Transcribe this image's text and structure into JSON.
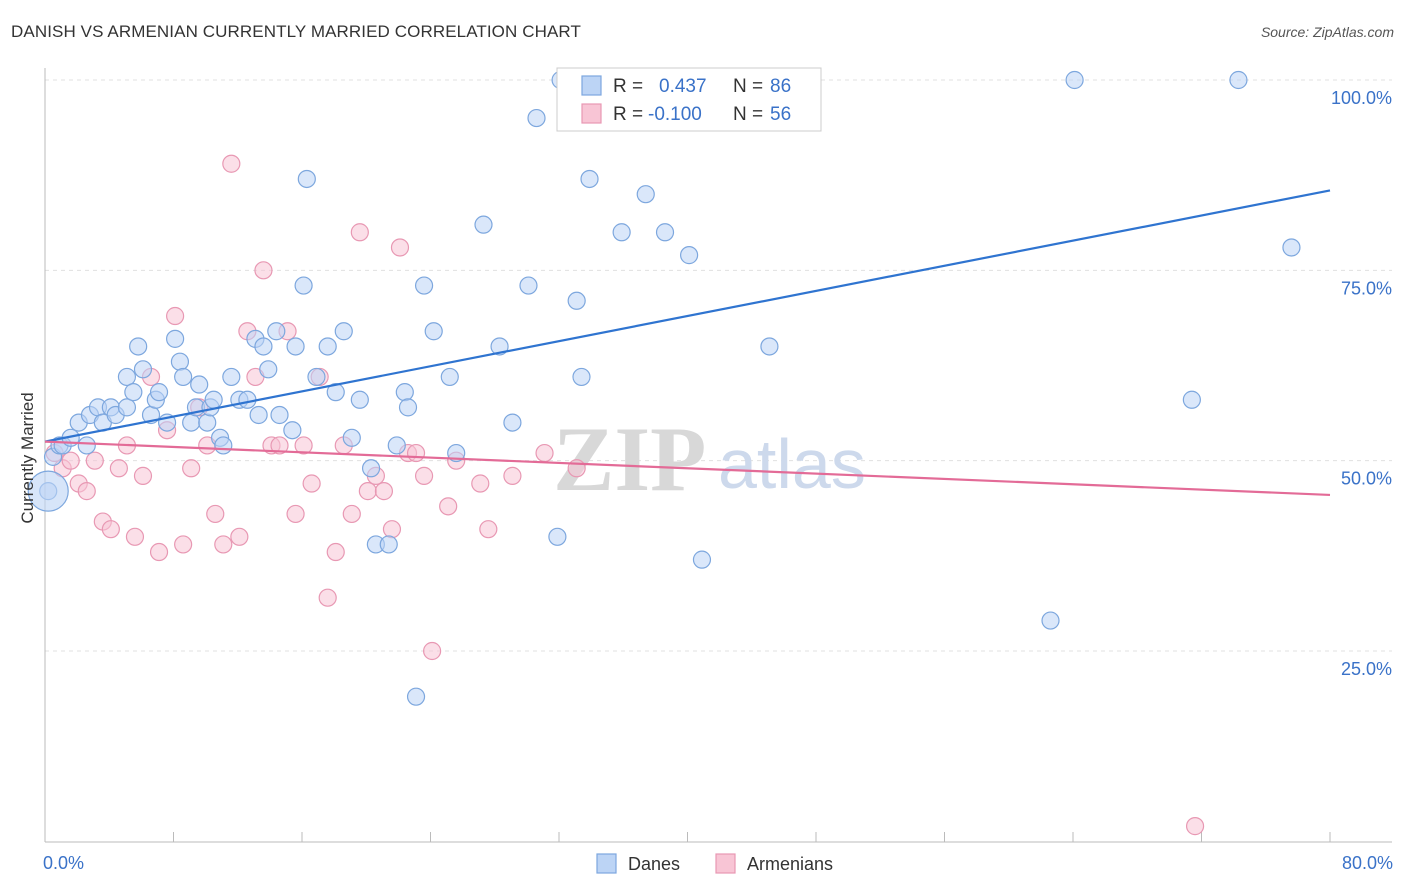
{
  "title": "DANISH VS ARMENIAN CURRENTLY MARRIED CORRELATION CHART",
  "source": "Source: ZipAtlas.com",
  "watermark": {
    "zip": "ZIP",
    "atlas": "atlas"
  },
  "colors": {
    "danes_fill": "#bcd4f5",
    "danes_stroke": "#7da7de",
    "danes_line": "#2f74d0",
    "armenians_fill": "#f8c5d5",
    "armenians_stroke": "#e898b3",
    "armenians_line": "#e36b97",
    "axis_label": "#3a72c8",
    "grid": "#e0e0e0"
  },
  "legend_box": {
    "rows": [
      {
        "series": "danes",
        "r_label": "R =",
        "r_value": "0.437",
        "n_label": "N =",
        "n_value": "86"
      },
      {
        "series": "armenians",
        "r_label": "R =",
        "r_value": "-0.100",
        "n_label": "N =",
        "n_value": "56"
      }
    ]
  },
  "bottom_legend": [
    {
      "series": "danes",
      "label": "Danes"
    },
    {
      "series": "armenians",
      "label": "Armenians"
    }
  ],
  "chart_data": {
    "type": "scatter",
    "title": "DANISH VS ARMENIAN CURRENTLY MARRIED CORRELATION CHART",
    "ylabel": "Currently Married",
    "xlabel": "",
    "xlim": [
      0,
      80
    ],
    "ylim": [
      0,
      104
    ],
    "x_tick_labels": [
      "0.0%",
      "80.0%"
    ],
    "y_ticks": [
      25,
      50,
      75,
      100
    ],
    "y_tick_labels": [
      "25.0%",
      "50.0%",
      "75.0%",
      "100.0%"
    ],
    "grid": true,
    "legend_position": "top-center",
    "series": [
      {
        "name": "Danes",
        "r": 0.437,
        "n": 86,
        "trend": {
          "x": [
            0,
            80
          ],
          "y": [
            52.5,
            85.5
          ]
        },
        "points": [
          [
            0.2,
            46
          ],
          [
            0.5,
            50.5
          ],
          [
            0.9,
            52
          ],
          [
            1.1,
            52
          ],
          [
            1.6,
            53
          ],
          [
            2.1,
            55
          ],
          [
            2.6,
            52
          ],
          [
            2.8,
            56
          ],
          [
            3.3,
            57
          ],
          [
            3.6,
            55
          ],
          [
            4.1,
            57
          ],
          [
            4.4,
            56
          ],
          [
            5.1,
            61
          ],
          [
            5.1,
            57
          ],
          [
            5.5,
            59
          ],
          [
            5.8,
            65
          ],
          [
            6.1,
            62
          ],
          [
            6.6,
            56
          ],
          [
            6.9,
            58
          ],
          [
            7.1,
            59
          ],
          [
            7.6,
            55
          ],
          [
            8.1,
            66
          ],
          [
            8.4,
            63
          ],
          [
            8.6,
            61
          ],
          [
            9.1,
            55
          ],
          [
            9.4,
            57
          ],
          [
            9.6,
            60
          ],
          [
            10.1,
            55
          ],
          [
            10.3,
            57
          ],
          [
            10.5,
            58
          ],
          [
            10.9,
            53
          ],
          [
            11.1,
            52
          ],
          [
            11.6,
            61
          ],
          [
            12.1,
            58
          ],
          [
            12.6,
            58
          ],
          [
            13.1,
            66
          ],
          [
            13.3,
            56
          ],
          [
            13.6,
            65
          ],
          [
            13.9,
            62
          ],
          [
            14.4,
            67
          ],
          [
            14.6,
            56
          ],
          [
            15.4,
            54
          ],
          [
            15.6,
            65
          ],
          [
            16.1,
            73
          ],
          [
            16.3,
            87
          ],
          [
            16.9,
            61
          ],
          [
            17.6,
            65
          ],
          [
            18.1,
            59
          ],
          [
            18.6,
            67
          ],
          [
            19.1,
            53
          ],
          [
            19.6,
            58
          ],
          [
            20.3,
            49
          ],
          [
            20.6,
            39
          ],
          [
            21.4,
            39
          ],
          [
            21.9,
            52
          ],
          [
            22.4,
            59
          ],
          [
            22.6,
            57
          ],
          [
            23.1,
            19
          ],
          [
            23.6,
            73
          ],
          [
            24.2,
            67
          ],
          [
            25.2,
            61
          ],
          [
            25.6,
            51
          ],
          [
            27.3,
            81
          ],
          [
            28.3,
            65
          ],
          [
            29.1,
            55
          ],
          [
            30.1,
            73
          ],
          [
            30.6,
            95
          ],
          [
            31.9,
            40
          ],
          [
            32.1,
            100
          ],
          [
            33.1,
            71
          ],
          [
            33.4,
            61
          ],
          [
            33.9,
            87
          ],
          [
            35.9,
            80
          ],
          [
            37.4,
            85
          ],
          [
            37.6,
            100
          ],
          [
            38.6,
            80
          ],
          [
            40.1,
            77
          ],
          [
            40.9,
            37
          ],
          [
            41.1,
            100
          ],
          [
            45.1,
            65
          ],
          [
            45.6,
            100
          ],
          [
            62.6,
            29
          ],
          [
            64.1,
            100
          ],
          [
            71.4,
            58
          ],
          [
            74.3,
            100
          ],
          [
            77.6,
            78
          ]
        ],
        "big_point": [
          0.2,
          46
        ]
      },
      {
        "name": "Armenians",
        "r": -0.1,
        "n": 56,
        "trend": {
          "x": [
            0,
            80
          ],
          "y": [
            52.5,
            45.5
          ]
        },
        "points": [
          [
            0.6,
            51
          ],
          [
            1.1,
            49
          ],
          [
            1.6,
            50
          ],
          [
            2.1,
            47
          ],
          [
            2.6,
            46
          ],
          [
            3.1,
            50
          ],
          [
            3.6,
            42
          ],
          [
            4.1,
            41
          ],
          [
            4.6,
            49
          ],
          [
            5.1,
            52
          ],
          [
            5.6,
            40
          ],
          [
            6.1,
            48
          ],
          [
            6.6,
            61
          ],
          [
            7.1,
            38
          ],
          [
            7.6,
            54
          ],
          [
            8.1,
            69
          ],
          [
            8.6,
            39
          ],
          [
            9.1,
            49
          ],
          [
            9.6,
            57
          ],
          [
            10.1,
            52
          ],
          [
            10.6,
            43
          ],
          [
            11.1,
            39
          ],
          [
            11.6,
            89
          ],
          [
            12.1,
            40
          ],
          [
            12.6,
            67
          ],
          [
            13.1,
            61
          ],
          [
            13.6,
            75
          ],
          [
            14.1,
            52
          ],
          [
            14.6,
            52
          ],
          [
            15.1,
            67
          ],
          [
            15.6,
            43
          ],
          [
            16.1,
            52
          ],
          [
            16.6,
            47
          ],
          [
            17.1,
            61
          ],
          [
            17.6,
            32
          ],
          [
            18.1,
            38
          ],
          [
            18.6,
            52
          ],
          [
            19.1,
            43
          ],
          [
            19.6,
            80
          ],
          [
            20.1,
            46
          ],
          [
            20.6,
            48
          ],
          [
            21.1,
            46
          ],
          [
            21.6,
            41
          ],
          [
            22.1,
            78
          ],
          [
            22.6,
            51
          ],
          [
            23.1,
            51
          ],
          [
            23.6,
            48
          ],
          [
            24.1,
            25
          ],
          [
            25.1,
            44
          ],
          [
            25.6,
            50
          ],
          [
            27.1,
            47
          ],
          [
            27.6,
            41
          ],
          [
            29.1,
            48
          ],
          [
            31.1,
            51
          ],
          [
            33.1,
            49
          ],
          [
            71.6,
            2
          ]
        ]
      }
    ]
  }
}
